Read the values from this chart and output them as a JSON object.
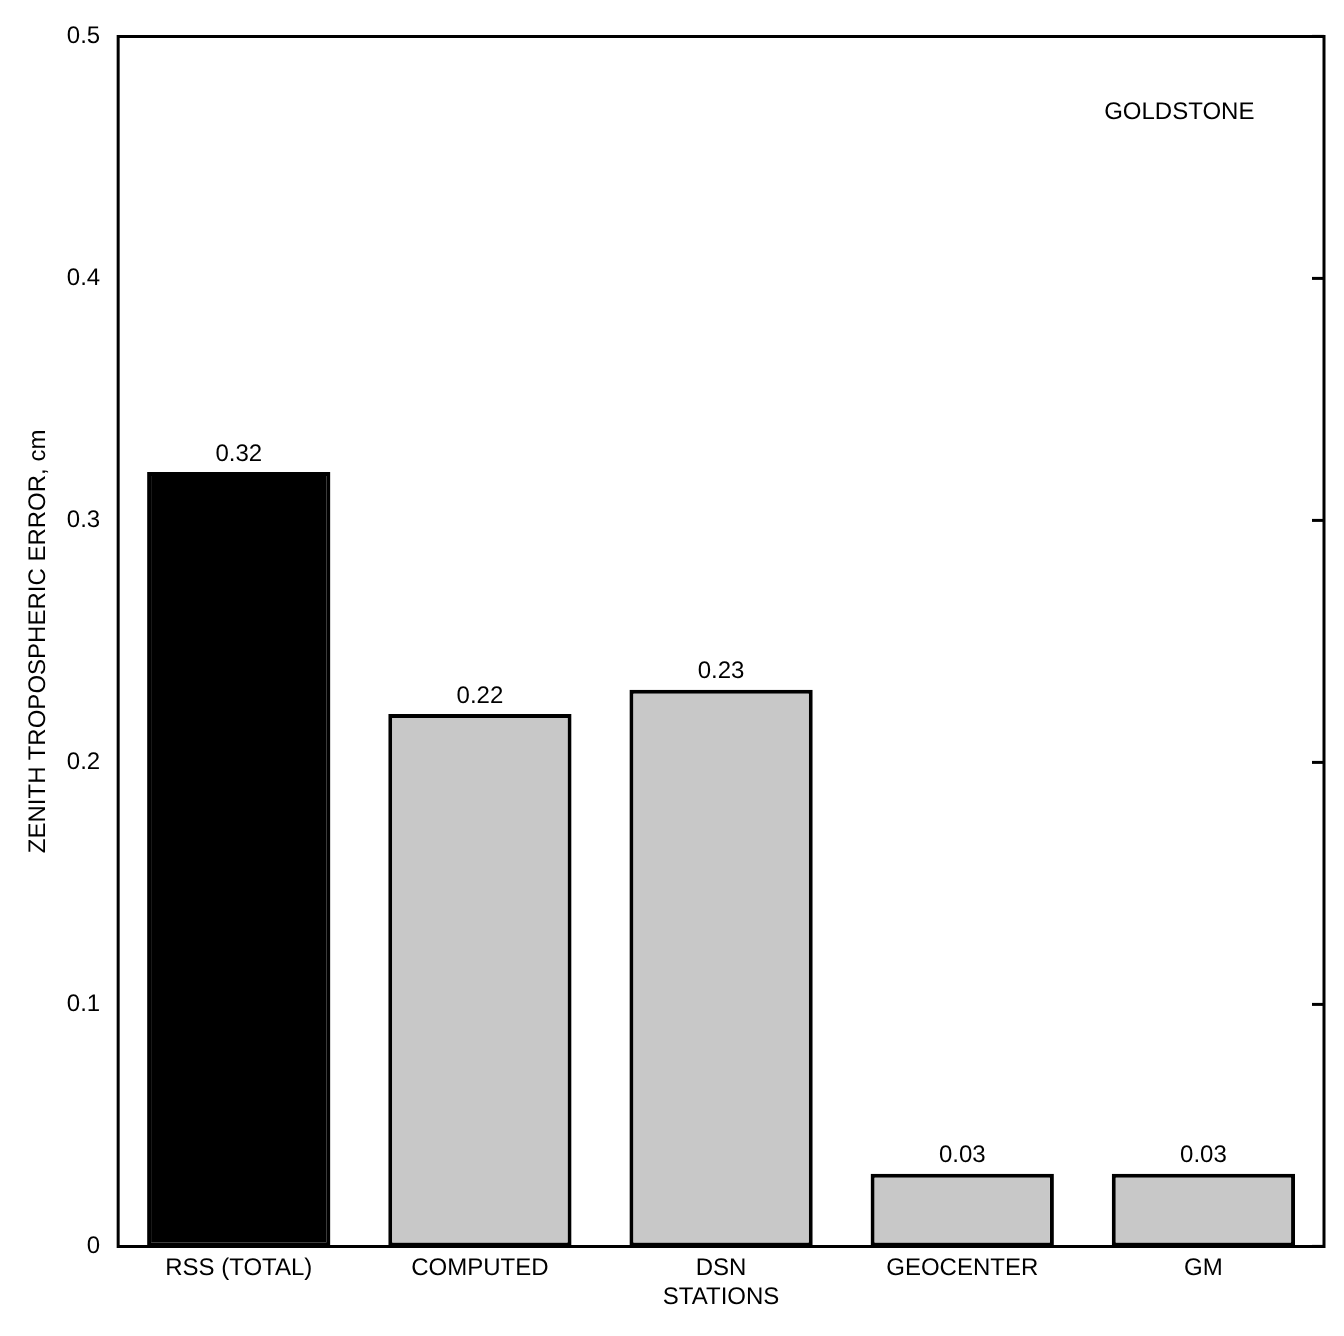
{
  "chart_data": {
    "type": "bar",
    "ylabel": "ZENITH TROPOSPHERIC ERROR, cm",
    "categories": [
      "RSS (TOTAL)",
      "COMPUTED",
      "DSN\nSTATIONS",
      "GEOCENTER",
      "GM"
    ],
    "values": [
      0.32,
      0.22,
      0.23,
      0.03,
      0.03
    ],
    "colors": [
      "#000000",
      "#c8c8c8",
      "#c8c8c8",
      "#c8c8c8",
      "#c8c8c8"
    ],
    "ylim": [
      0,
      0.5
    ],
    "yticks": [
      0,
      0.1,
      0.2,
      0.3,
      0.4,
      0.5
    ],
    "grid": false,
    "legend": false,
    "data_labels": true,
    "annotations": [
      "GOLDSTONE"
    ]
  }
}
